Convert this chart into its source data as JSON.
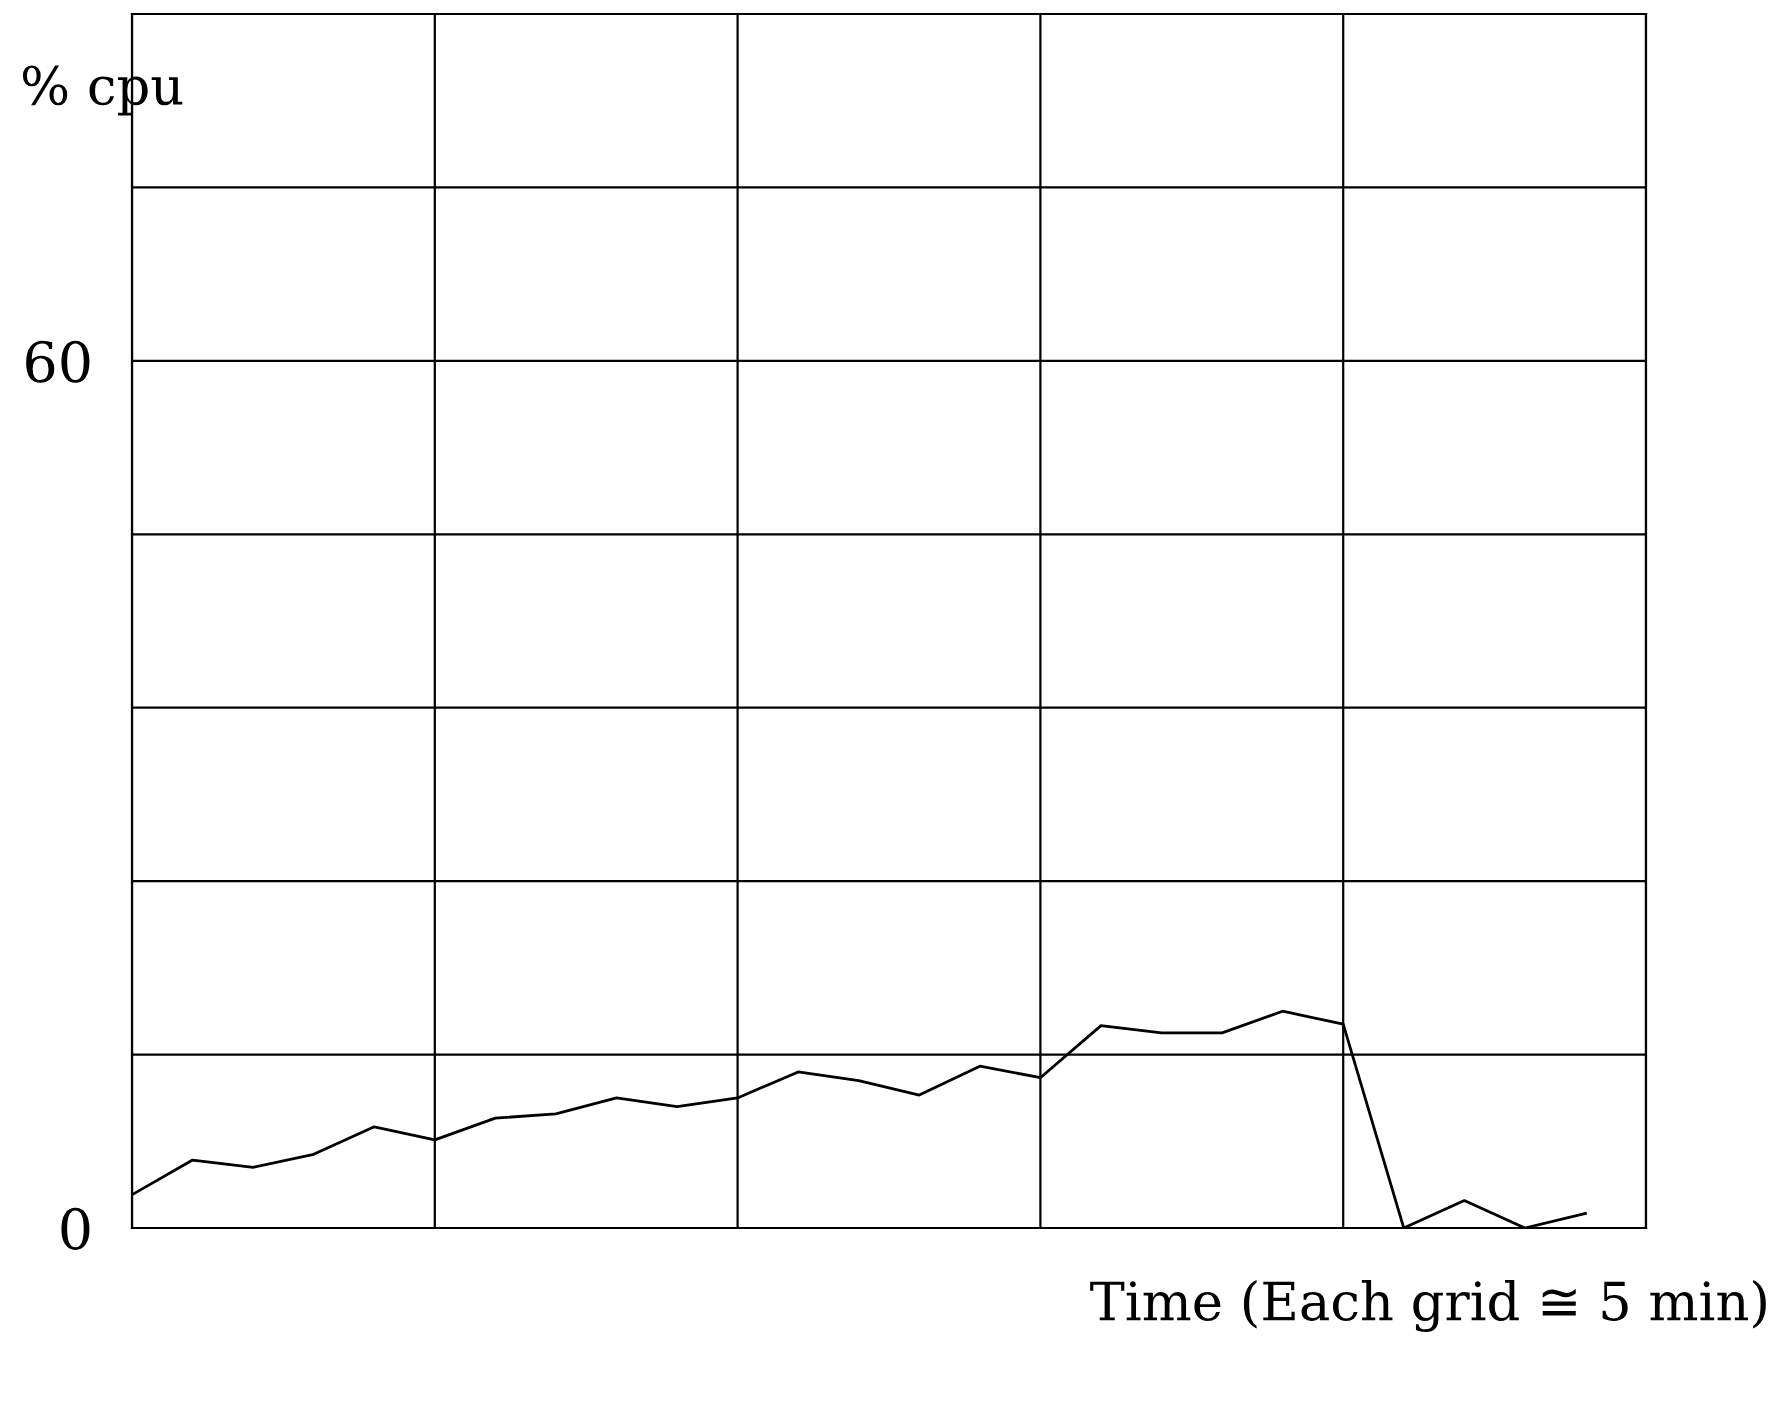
{
  "chart_data": {
    "type": "line",
    "ylabel": "% cpu",
    "xlabel": "Time (Each grid ≅ 5 min)",
    "categories": [
      null,
      null,
      null,
      null,
      null,
      null,
      null,
      null,
      null,
      null,
      null,
      null,
      null,
      null,
      null,
      null,
      null,
      null,
      null,
      null,
      null,
      null,
      null,
      null,
      null
    ],
    "series": [
      {
        "color": "#000000",
        "values": [
          2.3,
          4.7,
          4.2,
          5.1,
          7.0,
          6.1,
          7.6,
          7.9,
          9.0,
          8.4,
          9.0,
          10.8,
          10.2,
          9.2,
          11.2,
          10.4,
          14.0,
          13.5,
          13.5,
          15.0,
          14.1,
          0,
          1.9,
          0,
          1.0
        ]
      }
    ],
    "ylim": [
      0,
      84
    ],
    "yticks": [
      0,
      {
        "value": 12,
        "label": null
      },
      {
        "value": 24,
        "label": null
      },
      {
        "value": 36,
        "label": null
      },
      {
        "value": 48,
        "label": null
      },
      60,
      {
        "value": 72,
        "label": null
      },
      {
        "value": 84,
        "label": null
      }
    ],
    "grid": true,
    "tick_labels": "y",
    "marker": "none",
    "line_style": "solid"
  }
}
